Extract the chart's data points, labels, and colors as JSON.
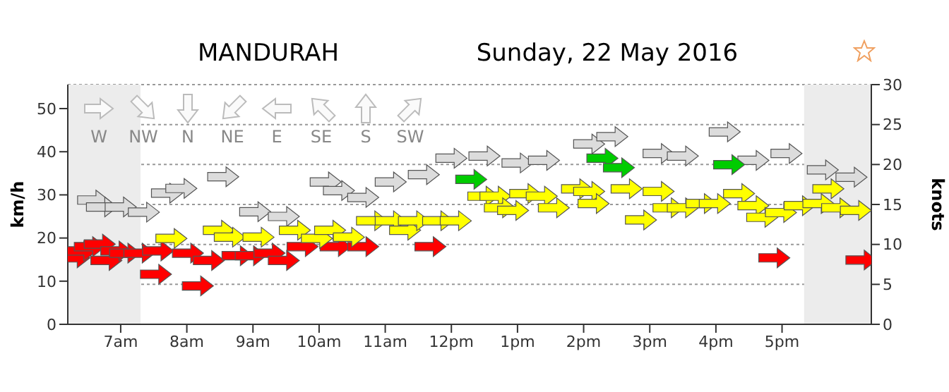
{
  "chart_data": {
    "type": "scatter",
    "title": "MANDURAH",
    "subtitle": "Sunday, 22 May 2016",
    "ylabel": "km/h",
    "y2label": "knots",
    "xlim": [
      "2016-05-22T06:12",
      "2016-05-22T18:21"
    ],
    "xticks": [
      {
        "value": "2016-05-22T07:00",
        "label": "7am"
      },
      {
        "value": "2016-05-22T08:00",
        "label": "8am"
      },
      {
        "value": "2016-05-22T09:00",
        "label": "9am"
      },
      {
        "value": "2016-05-22T10:00",
        "label": "10am"
      },
      {
        "value": "2016-05-22T11:00",
        "label": "11am"
      },
      {
        "value": "2016-05-22T12:00",
        "label": "12pm"
      },
      {
        "value": "2016-05-22T13:00",
        "label": "1pm"
      },
      {
        "value": "2016-05-22T14:00",
        "label": "2pm"
      },
      {
        "value": "2016-05-22T15:00",
        "label": "3pm"
      },
      {
        "value": "2016-05-22T16:00",
        "label": "4pm"
      },
      {
        "value": "2016-05-22T17:00",
        "label": "5pm"
      }
    ],
    "ylim": [
      0,
      55.56
    ],
    "yticks": [
      0,
      10,
      20,
      30,
      40,
      50
    ],
    "y2lim": [
      0,
      30
    ],
    "y2ticks": [
      0,
      5,
      10,
      15,
      20,
      25,
      30
    ],
    "grid": "y",
    "bands": [
      {
        "axis": "x",
        "from": "2016-05-22T06:12",
        "to": "2016-05-22T07:18",
        "color": "#ececec"
      },
      {
        "axis": "x",
        "from": "2016-05-22T17:20",
        "to": "2016-05-22T18:21",
        "color": "#ececec"
      }
    ],
    "annotations": [
      "W",
      "NW",
      "N",
      "NE",
      "E",
      "SE",
      "S",
      "SW"
    ],
    "series": [
      {
        "color": "#dcdcdc",
        "x": [
          "2016-05-22T06:35",
          "2016-05-22T06:43",
          "2016-05-22T07:00",
          "2016-05-22T07:21",
          "2016-05-22T07:42",
          "2016-05-22T07:55",
          "2016-05-22T08:33",
          "2016-05-22T09:02",
          "2016-05-22T09:28",
          "2016-05-22T10:06",
          "2016-05-22T10:18",
          "2016-05-22T10:40",
          "2016-05-22T11:05",
          "2016-05-22T11:35",
          "2016-05-22T12:00",
          "2016-05-22T12:30",
          "2016-05-22T13:00",
          "2016-05-22T13:24",
          "2016-05-22T14:05",
          "2016-05-22T14:26",
          "2016-05-22T15:08",
          "2016-05-22T15:30",
          "2016-05-22T16:08",
          "2016-05-22T16:34",
          "2016-05-22T17:04",
          "2016-05-22T17:37",
          "2016-05-22T18:03"
        ],
        "values": [
          28.8,
          27.2,
          27.2,
          26,
          30.4,
          31.5,
          34.2,
          26.1,
          25,
          33,
          31,
          29.4,
          33,
          34.7,
          38.5,
          39,
          37.4,
          38,
          41.8,
          43.5,
          39.6,
          39,
          44.6,
          38,
          39.6,
          35.8,
          34.1
        ]
      },
      {
        "color": "#ff0000",
        "x": [
          "2016-05-22T06:18",
          "2016-05-22T06:24",
          "2016-05-22T06:32",
          "2016-05-22T06:41",
          "2016-05-22T06:47",
          "2016-05-22T06:56",
          "2016-05-22T07:04",
          "2016-05-22T07:17",
          "2016-05-22T07:32",
          "2016-05-22T07:34",
          "2016-05-22T08:01",
          "2016-05-22T08:10",
          "2016-05-22T08:20",
          "2016-05-22T08:46",
          "2016-05-22T08:58",
          "2016-05-22T09:15",
          "2016-05-22T09:28",
          "2016-05-22T09:45",
          "2016-05-22T10:15",
          "2016-05-22T10:40",
          "2016-05-22T11:41",
          "2016-05-22T16:53",
          "2016-05-22T18:12"
        ],
        "values": [
          15.4,
          17,
          18,
          18.6,
          14.8,
          17,
          16.5,
          16.5,
          11.6,
          17,
          16.5,
          8.9,
          14.8,
          15.9,
          15.9,
          16.5,
          14.8,
          18,
          18,
          18,
          18,
          15.4,
          14.9
        ]
      },
      {
        "color": "#ffff00",
        "x": [
          "2016-05-22T07:46",
          "2016-05-22T08:29",
          "2016-05-22T08:39",
          "2016-05-22T09:05",
          "2016-05-22T09:38",
          "2016-05-22T09:58",
          "2016-05-22T10:10",
          "2016-05-22T10:27",
          "2016-05-22T10:48",
          "2016-05-22T11:05",
          "2016-05-22T11:18",
          "2016-05-22T11:26",
          "2016-05-22T11:48",
          "2016-05-22T12:04",
          "2016-05-22T12:29",
          "2016-05-22T12:40",
          "2016-05-22T12:44",
          "2016-05-22T12:56",
          "2016-05-22T13:07",
          "2016-05-22T13:22",
          "2016-05-22T13:33",
          "2016-05-22T13:54",
          "2016-05-22T14:05",
          "2016-05-22T14:09",
          "2016-05-22T14:39",
          "2016-05-22T14:52",
          "2016-05-22T15:08",
          "2016-05-22T15:17",
          "2016-05-22T15:30",
          "2016-05-22T15:47",
          "2016-05-22T15:59",
          "2016-05-22T16:21",
          "2016-05-22T16:34",
          "2016-05-22T16:42",
          "2016-05-22T16:59",
          "2016-05-22T17:16",
          "2016-05-22T17:33",
          "2016-05-22T17:42",
          "2016-05-22T17:50",
          "2016-05-22T18:07"
        ],
        "values": [
          19.9,
          21.8,
          20.2,
          20.2,
          21.8,
          19.9,
          21.8,
          20.2,
          24,
          24,
          21.8,
          24,
          24,
          24,
          29.7,
          29.7,
          27,
          26.4,
          30.3,
          29.7,
          27,
          31.4,
          30.8,
          28,
          31.4,
          24.2,
          30.8,
          27,
          27,
          28,
          28,
          30.3,
          27.5,
          24.8,
          25.9,
          27.5,
          28,
          31.4,
          27,
          26.4
        ]
      },
      {
        "color": "#00cc00",
        "x": [
          "2016-05-22T12:18",
          "2016-05-22T14:17",
          "2016-05-22T14:32",
          "2016-05-22T16:12"
        ],
        "values": [
          33.6,
          38.5,
          36.3,
          37
        ]
      }
    ]
  }
}
